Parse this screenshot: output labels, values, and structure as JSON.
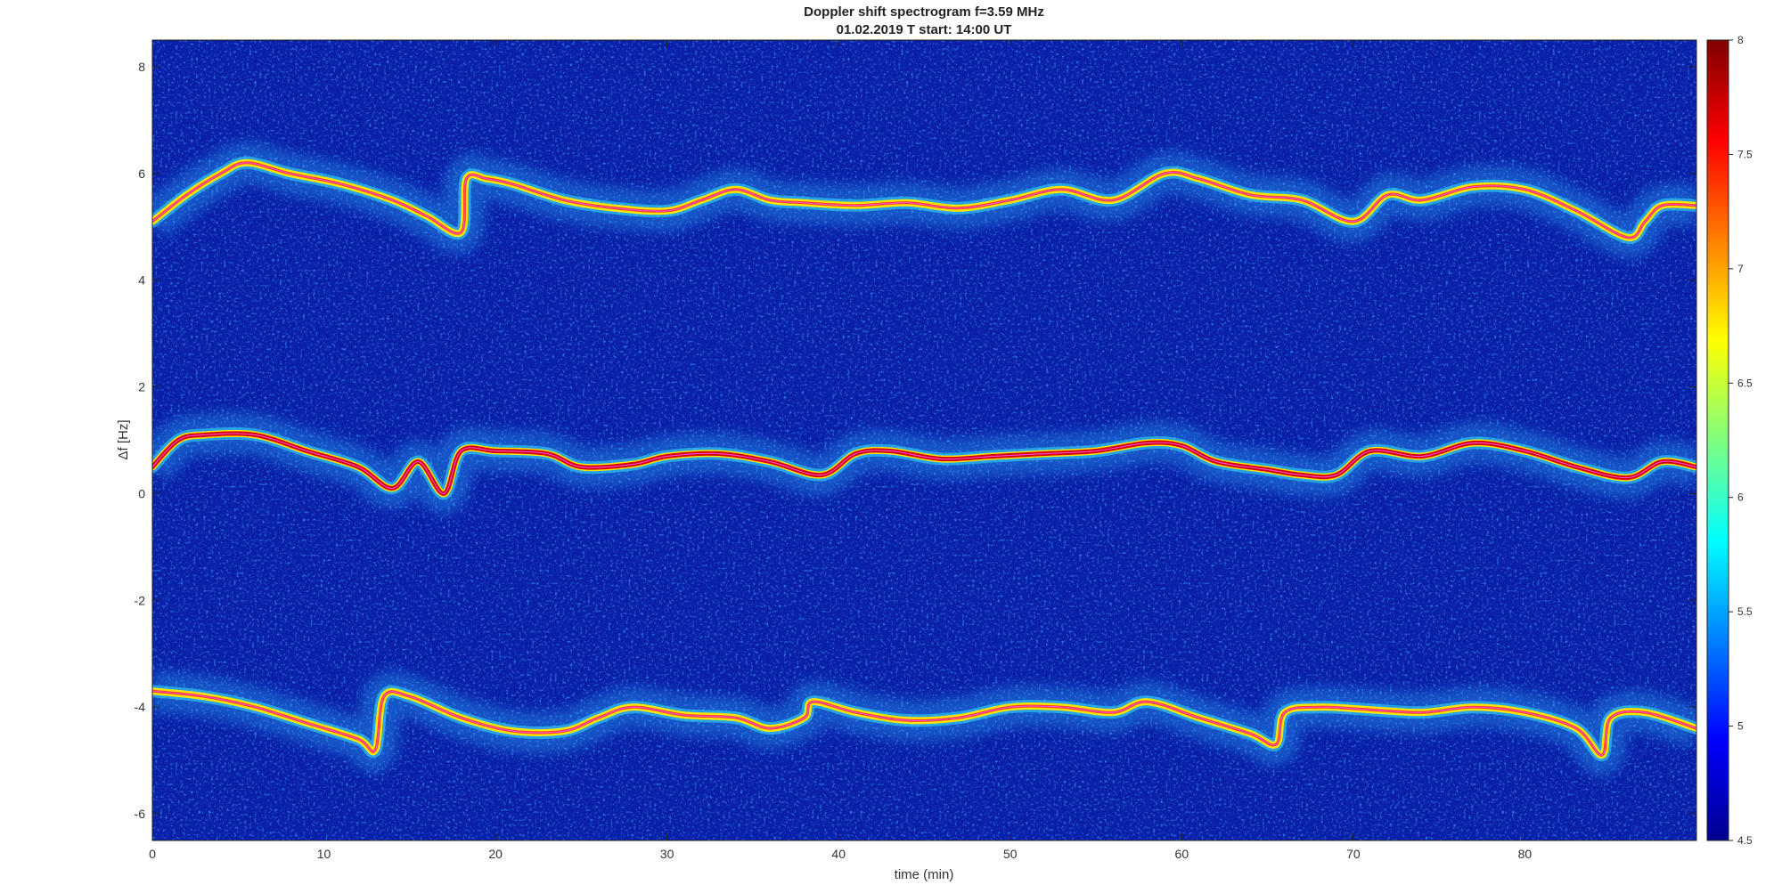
{
  "chart_data": {
    "type": "heatmap",
    "title": "Doppler shift spectrogram f=3.59 MHz",
    "subtitle": "01.02.2019   T start: 14:00 UT",
    "xlabel": "time (min)",
    "ylabel": "Δf [Hz]",
    "xlim": [
      0,
      90
    ],
    "ylim": [
      -6.5,
      8.5
    ],
    "xticks": [
      0,
      10,
      20,
      30,
      40,
      50,
      60,
      70,
      80
    ],
    "yticks": [
      -6,
      -4,
      -2,
      0,
      2,
      4,
      6,
      8
    ],
    "colorbar": {
      "range": [
        4.5,
        8
      ],
      "ticks": [
        4.5,
        5,
        5.5,
        6,
        6.5,
        7,
        7.5,
        8
      ],
      "colormap": "jet"
    },
    "background_color": "#0a1fa8",
    "series": [
      {
        "x": [
          0,
          2,
          4,
          5.5,
          8,
          11,
          14,
          16,
          18,
          18.3,
          19.5,
          21,
          24,
          27,
          30,
          32,
          34,
          36,
          38,
          41,
          44,
          47,
          50,
          53,
          56,
          59,
          61,
          64,
          67,
          70,
          72,
          74,
          77,
          80,
          83,
          86,
          87,
          88,
          90
        ],
        "y": [
          5.1,
          5.6,
          6.0,
          6.2,
          6.0,
          5.8,
          5.5,
          5.2,
          4.9,
          5.9,
          5.9,
          5.8,
          5.5,
          5.35,
          5.3,
          5.5,
          5.7,
          5.5,
          5.45,
          5.4,
          5.45,
          5.35,
          5.5,
          5.7,
          5.5,
          6.0,
          5.9,
          5.6,
          5.5,
          5.1,
          5.6,
          5.5,
          5.75,
          5.7,
          5.3,
          4.8,
          5.1,
          5.4,
          5.4
        ]
      },
      {
        "x": [
          0,
          1.5,
          3,
          6,
          9,
          12,
          14,
          15.5,
          17,
          18,
          20,
          23,
          25,
          28,
          30,
          33,
          36,
          39,
          41,
          43,
          46,
          49,
          52,
          55,
          58,
          60,
          62,
          65,
          67,
          69,
          71,
          74,
          77,
          80,
          83,
          86,
          88,
          90
        ],
        "y": [
          0.5,
          1.0,
          1.1,
          1.1,
          0.8,
          0.5,
          0.1,
          0.6,
          0.0,
          0.8,
          0.8,
          0.75,
          0.5,
          0.55,
          0.7,
          0.75,
          0.6,
          0.35,
          0.75,
          0.8,
          0.65,
          0.7,
          0.75,
          0.8,
          0.95,
          0.9,
          0.6,
          0.45,
          0.35,
          0.35,
          0.8,
          0.7,
          0.95,
          0.8,
          0.5,
          0.3,
          0.6,
          0.5
        ]
      },
      {
        "x": [
          0,
          3,
          6,
          9,
          12,
          13,
          13.5,
          15,
          18,
          21,
          24,
          26,
          28,
          31,
          34,
          36,
          38,
          38.5,
          41,
          44,
          47,
          50,
          53,
          56,
          58,
          61,
          64,
          65.5,
          66,
          68,
          71,
          74,
          77,
          80,
          83,
          84.5,
          85,
          87,
          90
        ],
        "y": [
          -3.7,
          -3.8,
          -4.0,
          -4.3,
          -4.6,
          -4.8,
          -3.8,
          -3.8,
          -4.2,
          -4.45,
          -4.45,
          -4.2,
          -4.0,
          -4.15,
          -4.2,
          -4.4,
          -4.2,
          -3.9,
          -4.1,
          -4.25,
          -4.2,
          -4.0,
          -4.0,
          -4.1,
          -3.9,
          -4.2,
          -4.5,
          -4.7,
          -4.1,
          -4.0,
          -4.05,
          -4.1,
          -4.0,
          -4.1,
          -4.4,
          -4.9,
          -4.2,
          -4.1,
          -4.4
        ]
      }
    ]
  }
}
